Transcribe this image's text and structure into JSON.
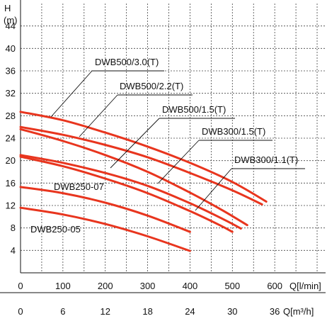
{
  "chart_data": {
    "type": "line",
    "yaxis": {
      "symbol": "H",
      "unit": "(m)",
      "ticks": [
        4,
        8,
        12,
        16,
        20,
        24,
        28,
        32,
        36,
        40,
        44
      ],
      "ylim": [
        0,
        48
      ]
    },
    "xaxis_flow_lmin": {
      "label": "Q[l/min]",
      "ticks": [
        0,
        100,
        200,
        300,
        400,
        500,
        600
      ],
      "xlim": [
        0,
        720
      ]
    },
    "xaxis_flow_m3h": {
      "label": "Q[m³/h]",
      "ticks": [
        0,
        6,
        12,
        18,
        24,
        30,
        36
      ]
    },
    "grid": true,
    "curve_color": "#e8351e",
    "series": [
      {
        "name": "DWB500/3.0(T)",
        "x": [
          0,
          100,
          200,
          300,
          400,
          500,
          580
        ],
        "y": [
          28.7,
          27.2,
          25.0,
          22.5,
          19.6,
          16.2,
          12.7
        ]
      },
      {
        "name": "DWB500/2.2(T)",
        "x": [
          0,
          100,
          200,
          300,
          400,
          500,
          570
        ],
        "y": [
          26.0,
          24.6,
          22.8,
          20.6,
          17.8,
          14.7,
          12.2
        ]
      },
      {
        "name": "DWB500/1.5(T)",
        "x": [
          0,
          100,
          200,
          300,
          400,
          480,
          535
        ],
        "y": [
          25.6,
          23.5,
          21.0,
          18.0,
          14.3,
          11.0,
          8.5
        ]
      },
      {
        "name": "DWB300/1.5(T)",
        "x": [
          0,
          100,
          200,
          300,
          400,
          480,
          520
        ],
        "y": [
          21.0,
          19.6,
          17.8,
          15.5,
          12.4,
          9.5,
          7.9
        ]
      },
      {
        "name": "DWB300/1.1(T)",
        "x": [
          0,
          100,
          200,
          300,
          400,
          470,
          500
        ],
        "y": [
          20.7,
          19.0,
          16.8,
          14.2,
          11.0,
          8.5,
          7.3
        ]
      },
      {
        "name": "DWB250-07",
        "x": [
          0,
          100,
          200,
          300,
          400
        ],
        "y": [
          15.3,
          14.2,
          12.5,
          10.2,
          7.3
        ]
      },
      {
        "name": "DWB250-05",
        "x": [
          0,
          100,
          200,
          300,
          400
        ],
        "y": [
          11.6,
          10.4,
          8.7,
          6.5,
          3.9
        ]
      }
    ]
  }
}
